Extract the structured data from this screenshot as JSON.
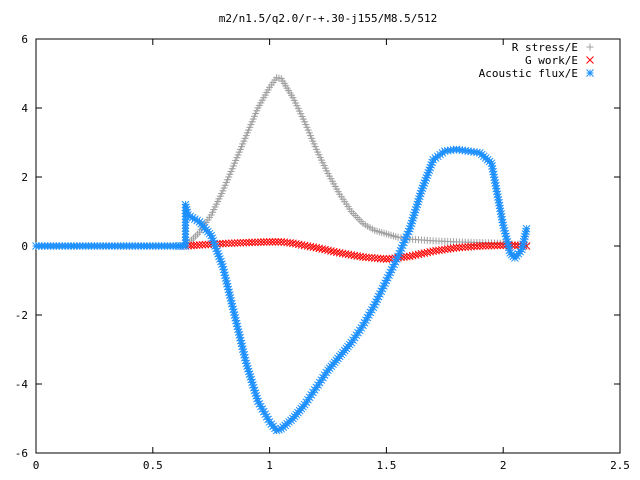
{
  "chart_data": {
    "type": "scatter",
    "title": "m2/n1.5/q2.0/r-+.30-j155/M8.5/512",
    "xlabel": "",
    "ylabel": "",
    "xlim": [
      0,
      2.5
    ],
    "ylim": [
      -6,
      6
    ],
    "xticks": [
      "0",
      "0.5",
      "1",
      "1.5",
      "2",
      "2.5"
    ],
    "yticks": [
      "-6",
      "-4",
      "-2",
      "0",
      "2",
      "4",
      "6"
    ],
    "grid": false,
    "legend_position": "top-right",
    "series": [
      {
        "name": "R stress/E",
        "marker": "+",
        "color": "#a0a0a0",
        "x": [
          0,
          0.1,
          0.2,
          0.3,
          0.4,
          0.5,
          0.6,
          0.64,
          0.7,
          0.75,
          0.8,
          0.85,
          0.9,
          0.95,
          1.0,
          1.03,
          1.05,
          1.1,
          1.15,
          1.2,
          1.25,
          1.3,
          1.35,
          1.4,
          1.45,
          1.5,
          1.55,
          1.6,
          1.7,
          1.8,
          1.9,
          2.0,
          2.05,
          2.1
        ],
        "y": [
          0,
          0,
          0,
          0,
          0,
          0,
          0,
          0,
          0.4,
          0.9,
          1.6,
          2.4,
          3.2,
          4.0,
          4.6,
          4.88,
          4.85,
          4.3,
          3.6,
          2.8,
          2.1,
          1.5,
          1.0,
          0.65,
          0.45,
          0.35,
          0.25,
          0.2,
          0.15,
          0.12,
          0.1,
          0.08,
          0.05,
          0.05
        ]
      },
      {
        "name": "G work/E",
        "marker": "x",
        "color": "#ff0000",
        "x": [
          0.64,
          0.7,
          0.8,
          0.9,
          1.0,
          1.05,
          1.1,
          1.2,
          1.3,
          1.4,
          1.5,
          1.6,
          1.7,
          1.8,
          1.9,
          2.0,
          2.05,
          2.1
        ],
        "y": [
          0,
          0.03,
          0.07,
          0.1,
          0.12,
          0.12,
          0.08,
          -0.05,
          -0.2,
          -0.32,
          -0.38,
          -0.3,
          -0.15,
          -0.05,
          0,
          0.02,
          0.02,
          0
        ]
      },
      {
        "name": "Acoustic flux/E",
        "marker": "*",
        "color": "#1e90ff",
        "x": [
          0,
          0.1,
          0.2,
          0.3,
          0.4,
          0.5,
          0.6,
          0.64,
          0.64,
          0.65,
          0.7,
          0.75,
          0.8,
          0.85,
          0.9,
          0.95,
          1.0,
          1.03,
          1.05,
          1.1,
          1.15,
          1.2,
          1.25,
          1.3,
          1.35,
          1.4,
          1.45,
          1.5,
          1.55,
          1.6,
          1.65,
          1.7,
          1.75,
          1.8,
          1.85,
          1.9,
          1.95,
          2.0,
          2.03,
          2.05,
          2.08,
          2.1
        ],
        "y": [
          0,
          0,
          0,
          0,
          0,
          0,
          0,
          0,
          1.2,
          0.9,
          0.7,
          0.3,
          -0.6,
          -2.0,
          -3.4,
          -4.5,
          -5.1,
          -5.35,
          -5.3,
          -5.0,
          -4.6,
          -4.1,
          -3.6,
          -3.2,
          -2.8,
          -2.3,
          -1.7,
          -1.0,
          -0.3,
          0.5,
          1.6,
          2.5,
          2.75,
          2.8,
          2.75,
          2.7,
          2.4,
          0.6,
          -0.2,
          -0.35,
          -0.1,
          0.5
        ]
      }
    ]
  }
}
